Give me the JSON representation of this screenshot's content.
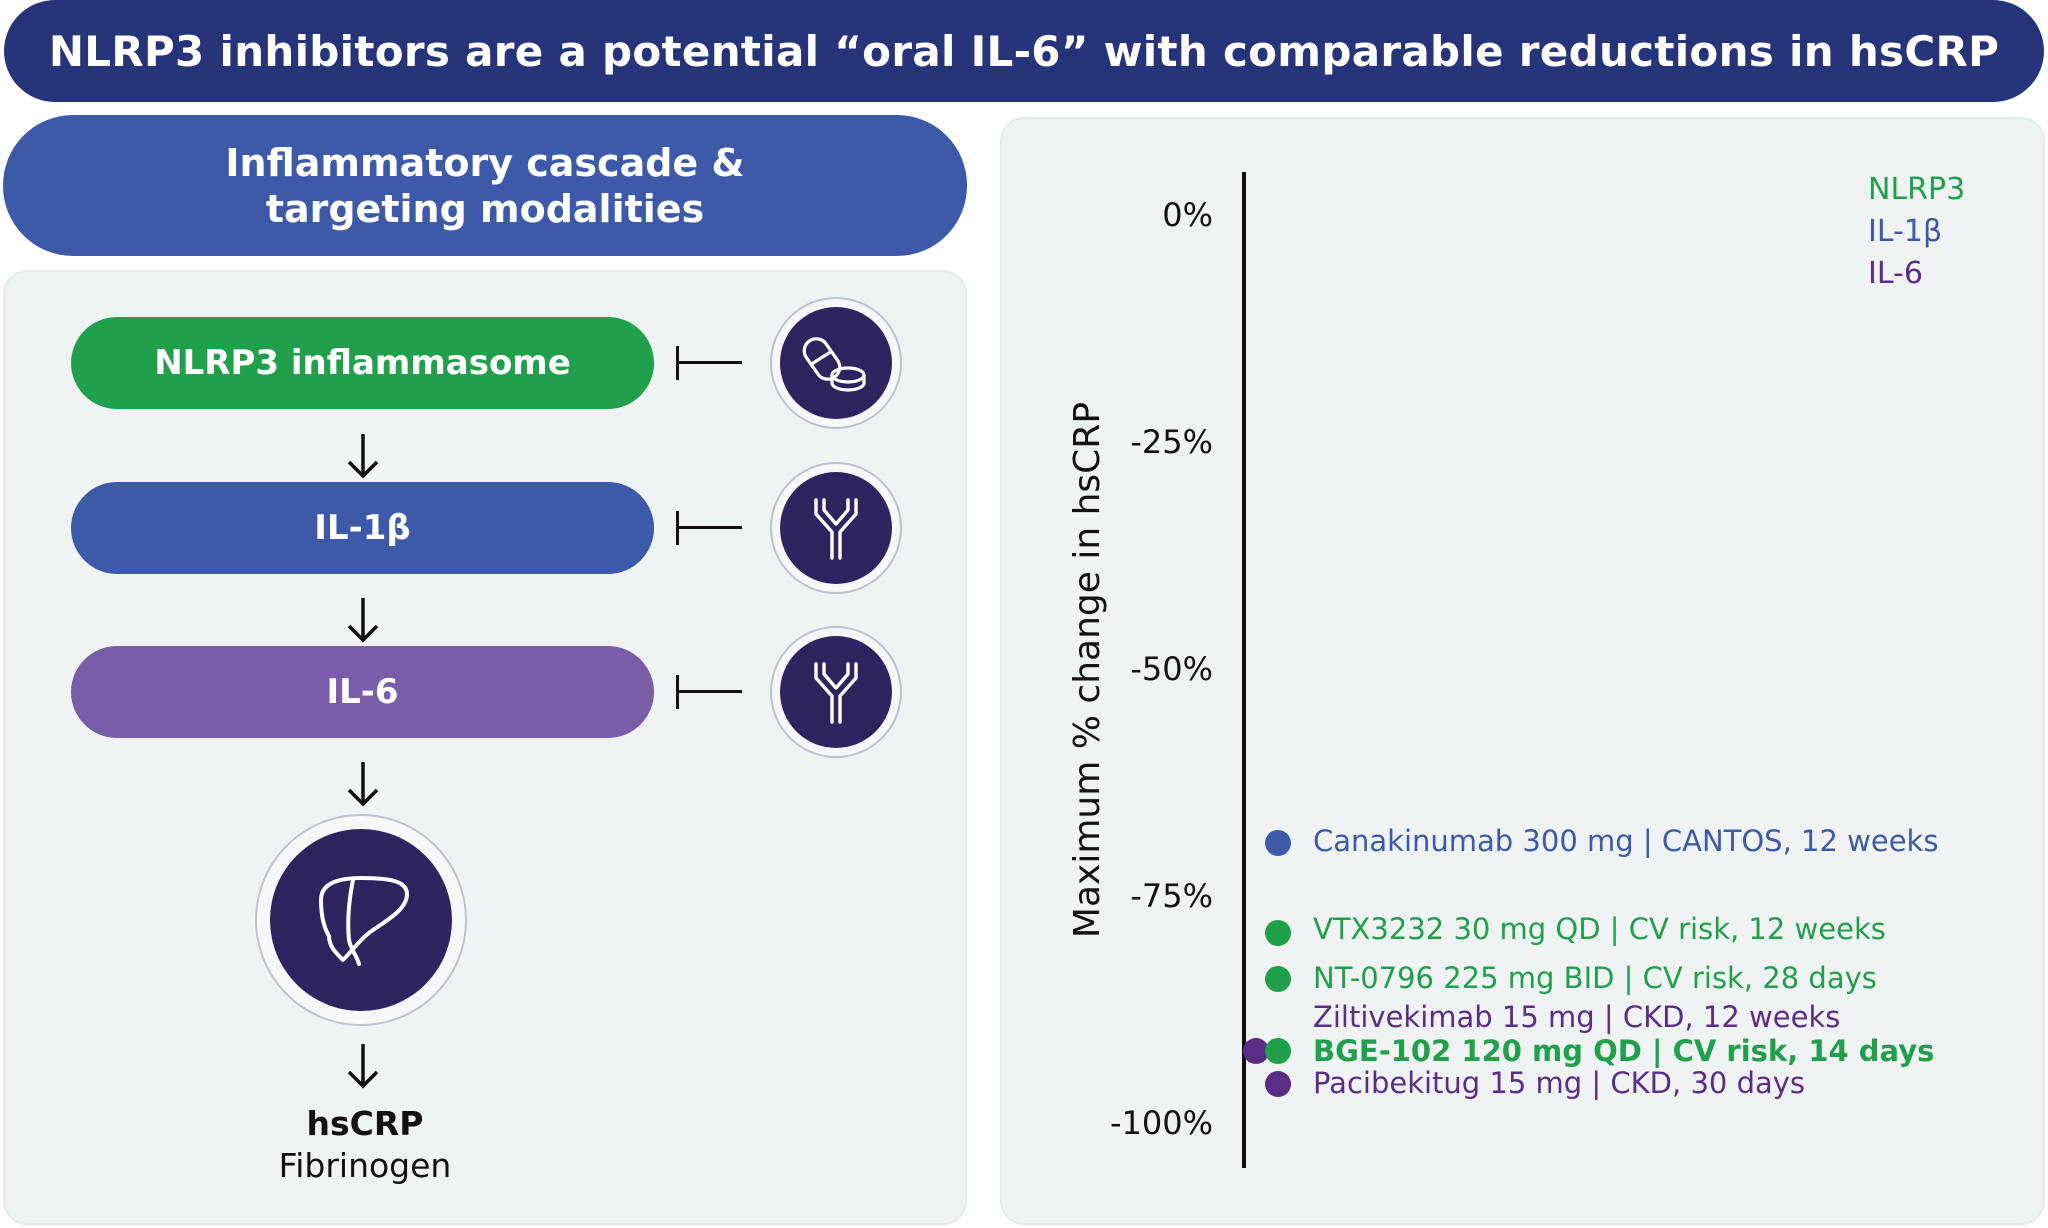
{
  "header": {
    "title": "NLRP3 inhibitors are a potential “oral IL-6” with comparable reductions in hsCRP"
  },
  "left": {
    "title_line1": "Inflammatory cascade &",
    "title_line2": "targeting modalities",
    "cascade": [
      {
        "label": "NLRP3 inflammasome",
        "color": "#21a04c",
        "modality_icon": "pills-icon"
      },
      {
        "label": "IL-1β",
        "color": "#3d5aa8",
        "modality_icon": "antibody-icon"
      },
      {
        "label": "IL-6",
        "color": "#7a5da8",
        "modality_icon": "antibody-icon"
      }
    ],
    "organ_icon": "liver-icon",
    "output_primary": "hsCRP",
    "output_secondary": "Fibrinogen"
  },
  "colors": {
    "nlrp3": "#21a04c",
    "il1b": "#3d5aa8",
    "il6": "#5b2d86",
    "dark_navy": "#26347a"
  },
  "chart_data": {
    "type": "scatter",
    "ylabel": "Maximum % change in hsCRP",
    "ylim": [
      -100,
      0
    ],
    "yticks": [
      0,
      -25,
      -50,
      -75,
      -100
    ],
    "ytick_labels": [
      "0%",
      "-25%",
      "-50%",
      "-75%",
      "-100%"
    ],
    "legend": [
      {
        "name": "NLRP3",
        "color": "#21a04c"
      },
      {
        "name": "IL-1β",
        "color": "#3d5aa8"
      },
      {
        "name": "IL-6",
        "color": "#5b2d86"
      }
    ],
    "legend_position": "top-right",
    "points": [
      {
        "label": "Canakinumab 300 mg | CANTOS, 12 weeks",
        "class": "IL-1β",
        "color": "#3d5aa8",
        "y": -69,
        "bold": false
      },
      {
        "label": "VTX3232 30 mg QD | CV risk, 12 weeks",
        "class": "NLRP3",
        "color": "#21a04c",
        "y": -79,
        "bold": false
      },
      {
        "label": "NT-0796 225 mg BID | CV risk, 28 days",
        "class": "NLRP3",
        "color": "#21a04c",
        "y": -84,
        "bold": false
      },
      {
        "label": "Ziltivekimab 15 mg | CKD, 12 weeks",
        "class": "IL-6",
        "color": "#5b2d86",
        "y": -92,
        "bold": false
      },
      {
        "label": "BGE-102 120 mg QD | CV risk, 14 days",
        "class": "NLRP3",
        "color": "#21a04c",
        "y": -92,
        "bold": true
      },
      {
        "label": "Pacibekitug 15 mg | CKD, 30 days",
        "class": "IL-6",
        "color": "#5b2d86",
        "y": -94,
        "bold": false
      }
    ]
  }
}
